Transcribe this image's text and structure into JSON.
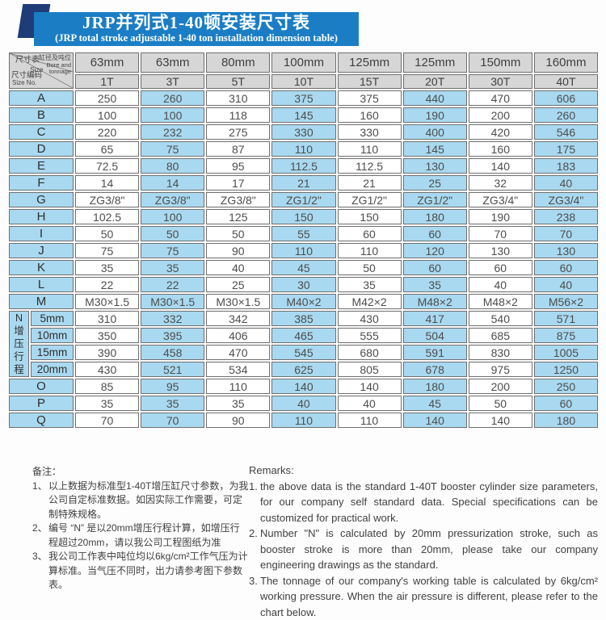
{
  "banner": {
    "title_cn": "JRP并列式1-40顿安装尺寸表",
    "title_en": "(JRP total stroke adjustable 1-40 ton installation dimension table)"
  },
  "colors": {
    "banner_blue": "#1b7ec5",
    "ribbon_navy": "#1e3c78",
    "header_gray": "#d6d6d6",
    "cell_blue": "#a9d9f0",
    "cell_white": "#ffffff",
    "border": "#6f6f6f"
  },
  "table": {
    "corner": {
      "top_left_cn": "尺寸表",
      "top_left_en": "Size",
      "top_right_cn": "缸径及吨位",
      "top_right_en1": "Bore and",
      "top_right_en2": "tonnage",
      "bottom_cn": "尺寸编码",
      "bottom_en": "Size No."
    },
    "bores": [
      "63mm",
      "63mm",
      "80mm",
      "100mm",
      "125mm",
      "125mm",
      "150mm",
      "160mm"
    ],
    "tonnages": [
      "1T",
      "3T",
      "5T",
      "10T",
      "15T",
      "20T",
      "30T",
      "40T"
    ],
    "group_label": "N增压行程",
    "rows": [
      {
        "label": "A",
        "values": [
          "250",
          "260",
          "310",
          "375",
          "375",
          "440",
          "470",
          "606"
        ]
      },
      {
        "label": "B",
        "values": [
          "100",
          "100",
          "118",
          "145",
          "160",
          "190",
          "200",
          "260"
        ]
      },
      {
        "label": "C",
        "values": [
          "220",
          "232",
          "275",
          "330",
          "330",
          "400",
          "420",
          "546"
        ]
      },
      {
        "label": "D",
        "values": [
          "65",
          "75",
          "87",
          "110",
          "110",
          "145",
          "160",
          "175"
        ]
      },
      {
        "label": "E",
        "values": [
          "72.5",
          "80",
          "95",
          "112.5",
          "112.5",
          "130",
          "140",
          "183"
        ]
      },
      {
        "label": "F",
        "values": [
          "14",
          "14",
          "17",
          "21",
          "21",
          "25",
          "32",
          "40"
        ]
      },
      {
        "label": "G",
        "values": [
          "ZG3/8\"",
          "ZG3/8\"",
          "ZG3/8\"",
          "ZG1/2\"",
          "ZG1/2\"",
          "ZG1/2\"",
          "ZG3/4\"",
          "ZG3/4\""
        ]
      },
      {
        "label": "H",
        "values": [
          "102.5",
          "100",
          "125",
          "150",
          "150",
          "180",
          "190",
          "238"
        ]
      },
      {
        "label": "I",
        "values": [
          "50",
          "50",
          "50",
          "55",
          "60",
          "60",
          "70",
          "70"
        ]
      },
      {
        "label": "J",
        "values": [
          "75",
          "75",
          "90",
          "110",
          "110",
          "120",
          "130",
          "130"
        ]
      },
      {
        "label": "K",
        "values": [
          "35",
          "35",
          "40",
          "45",
          "50",
          "60",
          "60",
          "60"
        ]
      },
      {
        "label": "L",
        "values": [
          "22",
          "22",
          "25",
          "30",
          "35",
          "35",
          "40",
          "40"
        ]
      },
      {
        "label": "M",
        "values": [
          "M30×1.5",
          "M30×1.5",
          "M30×1.5",
          "M40×2",
          "M42×2",
          "M48×2",
          "M48×2",
          "M56×2"
        ]
      },
      {
        "group": true,
        "sub": "5mm",
        "values": [
          "310",
          "332",
          "342",
          "385",
          "430",
          "417",
          "540",
          "571"
        ]
      },
      {
        "sub": "10mm",
        "values": [
          "350",
          "395",
          "406",
          "465",
          "555",
          "504",
          "685",
          "875"
        ]
      },
      {
        "sub": "15mm",
        "values": [
          "390",
          "458",
          "470",
          "545",
          "680",
          "591",
          "830",
          "1005"
        ]
      },
      {
        "sub": "20mm",
        "values": [
          "430",
          "521",
          "534",
          "625",
          "805",
          "678",
          "975",
          "1250"
        ]
      },
      {
        "label": "O",
        "values": [
          "85",
          "95",
          "110",
          "140",
          "140",
          "180",
          "200",
          "250"
        ]
      },
      {
        "label": "P",
        "values": [
          "35",
          "35",
          "35",
          "40",
          "40",
          "45",
          "50",
          "60"
        ]
      },
      {
        "label": "Q",
        "values": [
          "70",
          "70",
          "90",
          "110",
          "110",
          "140",
          "140",
          "180"
        ]
      }
    ]
  },
  "notes_cn": {
    "heading": "备注：",
    "items": [
      {
        "num": "1、",
        "text": "以上数据为标准型1-40T增压缸尺寸参数，为我公司自定标准数据。如因实际工作需要，可定制特殊规格。"
      },
      {
        "num": "2、",
        "text": "编号 “N” 是以20mm增压行程计算，如增压行程超过20mm，请以我公司工程图纸为准"
      },
      {
        "num": "3、",
        "text": "我公司工作表中吨位均以6kg/cm²工作气压为计算标准。当气压不同时，出力请参考图下参数表。"
      }
    ]
  },
  "notes_en": {
    "heading": "Remarks:",
    "items": [
      {
        "num": "1.",
        "text": "the above data is the standard 1-40T booster cylinder size parameters, for our company self standard data. Special specifications can be customized for practical work."
      },
      {
        "num": "2.",
        "text": "Number \"N\" is calculated by 20mm pressurization stroke, such as booster stroke is more than 20mm, please take our company engineering drawings as the standard."
      },
      {
        "num": "3.",
        "text": "The tonnage of our company's working table is calculated by 6kg/cm² working pressure. When the air pressure is different, please refer to the chart below."
      }
    ]
  }
}
